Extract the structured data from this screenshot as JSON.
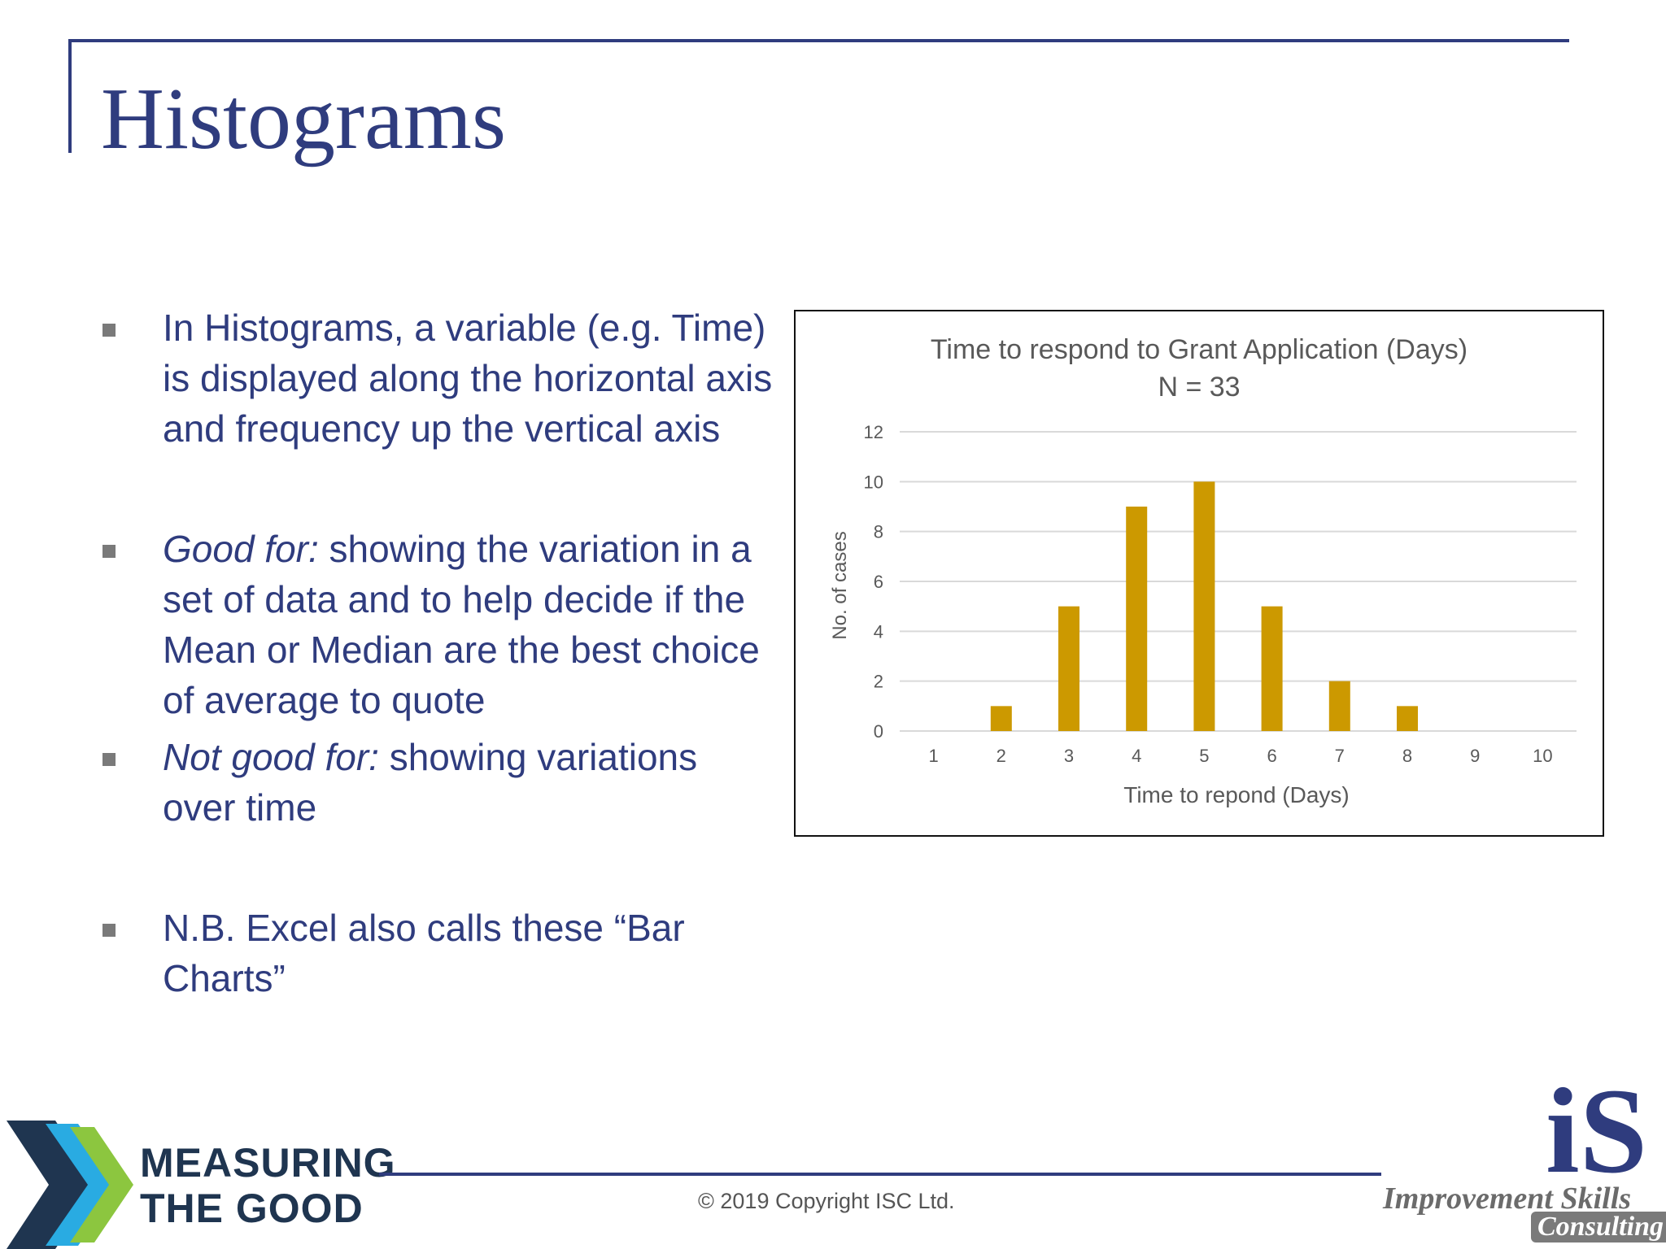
{
  "slide": {
    "title": "Histograms"
  },
  "bullets": [
    {
      "lead": "",
      "text": "In Histograms, a variable (e.g. Time) is displayed along the horizontal axis and frequency up the vertical axis"
    },
    {
      "lead": "Good for:",
      "text": " showing the variation in a set of data and to help decide if the Mean or Median are the best choice of average to quote"
    },
    {
      "lead": "Not good for:",
      "text": " showing variations over time"
    },
    {
      "lead": "",
      "text": "N.B. Excel also calls these “Bar Charts”"
    }
  ],
  "chart_data": {
    "type": "bar",
    "title": "Time to respond to Grant Application (Days)",
    "subtitle": "N = 33",
    "xlabel": "Time to repond (Days)",
    "ylabel": "No. of cases",
    "categories": [
      "1",
      "2",
      "3",
      "4",
      "5",
      "6",
      "7",
      "8",
      "9",
      "10"
    ],
    "values": [
      0,
      1,
      5,
      9,
      10,
      5,
      2,
      1,
      0,
      0
    ],
    "ylim": [
      0,
      12
    ],
    "yticks": [
      "0",
      "2",
      "4",
      "6",
      "8",
      "10",
      "12"
    ],
    "grid": true,
    "bar_color": "#cc9900",
    "grid_color": "#d9d9d9"
  },
  "footer": {
    "left_logo_line1": "MEASURING",
    "left_logo_line2": "THE GOOD",
    "copyright": "© 2019 Copyright ISC Ltd.",
    "right_logo_letters": "iS",
    "right_logo_name": "Improvement Skills",
    "right_logo_sub": "Consulting"
  },
  "colors": {
    "accent": "#2f3c7e",
    "logo_green": "#8cc63f",
    "logo_blue": "#29abe2",
    "logo_navy": "#1f3550"
  }
}
